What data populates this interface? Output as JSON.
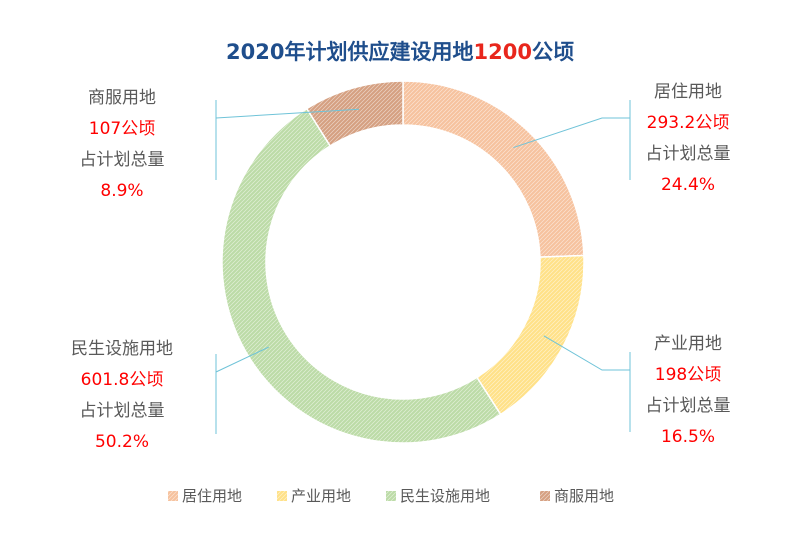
{
  "chart_data": {
    "type": "pie",
    "variant": "donut",
    "title_main": "2020年计划供应建设用地",
    "title_value": "1200",
    "title_unit": "公顷",
    "share_label": "占计划总量",
    "total": 1200,
    "series": [
      {
        "name": "居住用地",
        "value": 293.2,
        "value_label": "293.2公顷",
        "percent_label": "24.4%",
        "color": "#f4b183"
      },
      {
        "name": "产业用地",
        "value": 198,
        "value_label": "198公顷",
        "percent_label": "16.5%",
        "color": "#ffd966"
      },
      {
        "name": "民生设施用地",
        "value": 601.8,
        "value_label": "601.8公顷",
        "percent_label": "50.2%",
        "color": "#a9d18e"
      },
      {
        "name": "商服用地",
        "value": 107,
        "value_label": "107公顷",
        "percent_label": "8.9%",
        "color": "#c9855e"
      }
    ],
    "legend_position": "bottom"
  }
}
